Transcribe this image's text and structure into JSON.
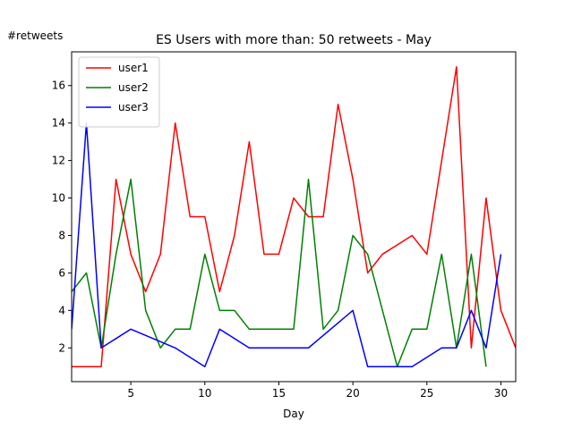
{
  "chart_data": {
    "type": "line",
    "title": "ES Users with more than: 50 retweets - May",
    "xlabel": "Day",
    "ylabel": "#retweets",
    "xlim": [
      1,
      31
    ],
    "ylim": [
      0.2,
      17.8
    ],
    "xticks": [
      5,
      10,
      15,
      20,
      25,
      30
    ],
    "yticks": [
      2,
      4,
      6,
      8,
      10,
      12,
      14,
      16
    ],
    "grid": false,
    "legend_position": "top-left",
    "series": [
      {
        "name": "user1",
        "color": "#ff0000",
        "x": [
          1,
          2,
          3,
          4,
          5,
          6,
          7,
          8,
          9,
          10,
          11,
          12,
          13,
          14,
          15,
          16,
          17,
          18,
          19,
          20,
          21,
          22,
          23,
          24,
          25,
          26,
          27,
          28,
          29,
          30,
          31
        ],
        "y": [
          1,
          1,
          1,
          11,
          7,
          5,
          7,
          14,
          9,
          9,
          5,
          8,
          13,
          7,
          7,
          10,
          9,
          9,
          15,
          11,
          6,
          7,
          7.5,
          8,
          7,
          12,
          17,
          2,
          10,
          4,
          2
        ]
      },
      {
        "name": "user2",
        "color": "#008000",
        "x": [
          1,
          2,
          3,
          4,
          5,
          6,
          7,
          8,
          9,
          10,
          11,
          12,
          13,
          14,
          15,
          16,
          17,
          18,
          19,
          20,
          21,
          22,
          23,
          24,
          25,
          26,
          27,
          28,
          29
        ],
        "y": [
          5,
          6,
          2,
          7,
          11,
          4,
          2,
          3,
          3,
          7,
          4,
          4,
          3,
          3,
          3,
          3,
          11,
          3,
          4,
          8,
          7,
          4,
          1,
          3,
          3,
          7,
          2,
          7,
          1
        ]
      },
      {
        "name": "user3",
        "color": "#0000ff",
        "x": [
          1,
          2,
          3,
          5,
          8,
          10,
          11,
          13,
          17,
          20,
          21,
          24,
          26,
          27,
          28,
          29,
          30
        ],
        "y": [
          3,
          14,
          2,
          3,
          2,
          1,
          3,
          2,
          2,
          4,
          1,
          1,
          2,
          2,
          4,
          2,
          7
        ]
      }
    ]
  }
}
